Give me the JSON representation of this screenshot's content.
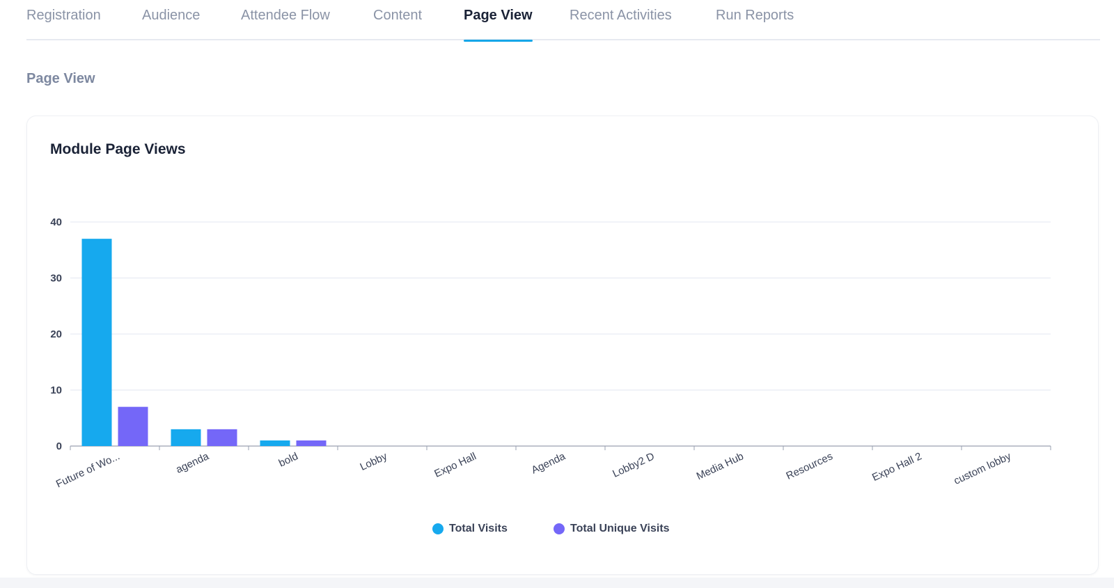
{
  "tabs": [
    {
      "label": "Registration",
      "active": false
    },
    {
      "label": "Audience",
      "active": false
    },
    {
      "label": "Attendee Flow",
      "active": false
    },
    {
      "label": "Content",
      "active": false
    },
    {
      "label": "Page View",
      "active": true
    },
    {
      "label": "Recent Activities",
      "active": false
    },
    {
      "label": "Run Reports",
      "active": false
    }
  ],
  "section_title": "Page View",
  "card": {
    "title": "Module Page Views"
  },
  "colors": {
    "total_visits": "#16a9ee",
    "total_unique_visits": "#7467f8",
    "accent": "#16a6e8"
  },
  "chart_data": {
    "type": "bar",
    "title": "Module Page Views",
    "categories": [
      "Future of Wo...",
      "agenda",
      "bold",
      "Lobby",
      "Expo Hall",
      "Agenda",
      "Lobby2 D",
      "Media Hub",
      "Resources",
      "Expo Hall 2",
      "custom lobby"
    ],
    "series": [
      {
        "name": "Total Visits",
        "values": [
          37,
          3,
          1,
          0,
          0,
          0,
          0,
          0,
          0,
          0,
          0
        ]
      },
      {
        "name": "Total Unique Visits",
        "values": [
          7,
          3,
          1,
          0,
          0,
          0,
          0,
          0,
          0,
          0,
          0
        ]
      }
    ],
    "yticks": [
      0,
      10,
      20,
      30,
      40
    ],
    "ylim": [
      0,
      40
    ],
    "xlabel": "",
    "ylabel": "",
    "grid": true,
    "legend_position": "bottom-center"
  }
}
